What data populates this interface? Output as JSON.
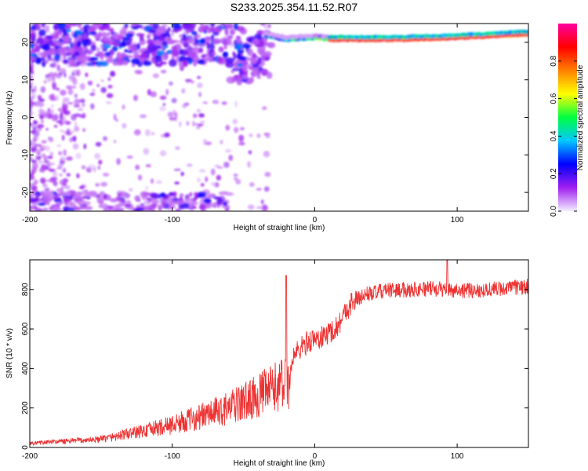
{
  "title": "S233.2025.354.11.52.R07",
  "chart_data": [
    {
      "type": "heatmap",
      "xlabel": "Height of straight line (km)",
      "ylabel": "Frequency (Hz)",
      "xlim": [
        -200,
        150
      ],
      "ylim": [
        -25,
        25
      ],
      "xticks": [
        -200,
        -100,
        0,
        100
      ],
      "yticks": [
        -20,
        -10,
        0,
        10,
        20
      ],
      "colorbar": {
        "label": "Normalized spectral amplitude",
        "range": [
          0,
          1
        ],
        "ticks": [
          0.0,
          0.2,
          0.4,
          0.6,
          0.8
        ],
        "colormap": [
          "#f4eeff",
          "#a020f0",
          "#0000ff",
          "#00c8ff",
          "#00ff40",
          "#ffff00",
          "#ff8000",
          "#ff0000",
          "#ff00a0"
        ]
      },
      "ridge": {
        "description_points": [
          {
            "x": -40,
            "y": 22
          },
          {
            "x": -20,
            "y": 20.5
          },
          {
            "x": 0,
            "y": 21
          },
          {
            "x": 10,
            "y": 20.5
          },
          {
            "x": 50,
            "y": 20.5
          },
          {
            "x": 100,
            "y": 21
          },
          {
            "x": 150,
            "y": 22
          }
        ]
      }
    },
    {
      "type": "line",
      "xlabel": "Height of straight line (km)",
      "ylabel": "SNR (10 * v/v)",
      "xlim": [
        -200,
        150
      ],
      "ylim": [
        0,
        950
      ],
      "xticks": [
        -200,
        -100,
        0,
        100
      ],
      "yticks": [
        0,
        200,
        400,
        600,
        800
      ],
      "color": "#ee3333",
      "trend": [
        {
          "x": -200,
          "y": 20
        },
        {
          "x": -150,
          "y": 40
        },
        {
          "x": -120,
          "y": 80
        },
        {
          "x": -100,
          "y": 110
        },
        {
          "x": -80,
          "y": 150
        },
        {
          "x": -60,
          "y": 190
        },
        {
          "x": -40,
          "y": 250
        },
        {
          "x": -25,
          "y": 300
        },
        {
          "x": -18,
          "y": 320
        },
        {
          "x": -15,
          "y": 460
        },
        {
          "x": -5,
          "y": 530
        },
        {
          "x": 5,
          "y": 550
        },
        {
          "x": 15,
          "y": 600
        },
        {
          "x": 25,
          "y": 720
        },
        {
          "x": 35,
          "y": 770
        },
        {
          "x": 50,
          "y": 790
        },
        {
          "x": 80,
          "y": 800
        },
        {
          "x": 110,
          "y": 790
        },
        {
          "x": 150,
          "y": 810
        }
      ],
      "peaks": [
        {
          "x": -20,
          "y": 870
        },
        {
          "x": 93,
          "y": 950
        }
      ]
    }
  ]
}
